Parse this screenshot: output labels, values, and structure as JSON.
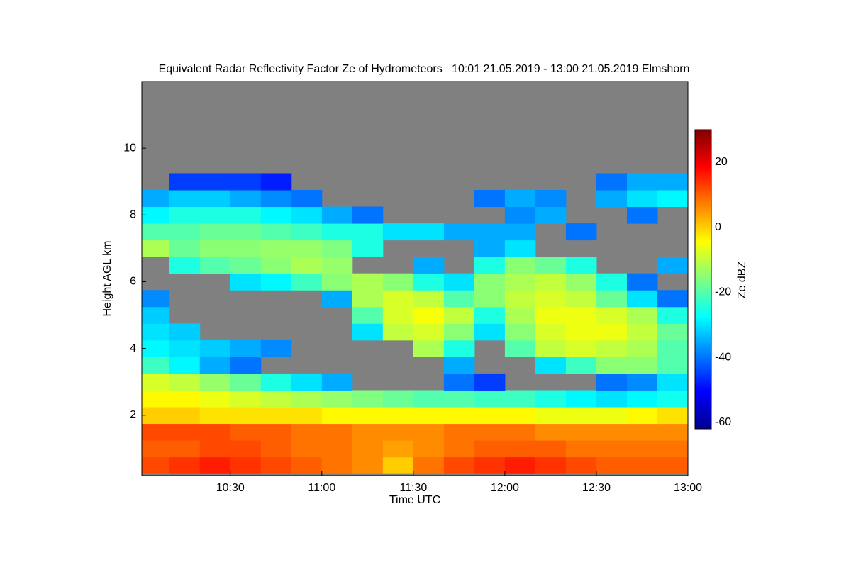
{
  "chart_data": {
    "type": "heatmap",
    "title": "Equivalent Radar Reflectivity Factor Ze of Hydrometeors   10:01 21.05.2019 - 13:00 21.05.2019 Elmshorn",
    "x_label": "Time UTC",
    "y_label": "Height AGL km",
    "colorbar_label": "Ze dBZ",
    "colormap": "jet",
    "background_color": "#808080",
    "xlim": [
      601,
      780
    ],
    "xticks": [
      {
        "value": 630,
        "label": "10:30"
      },
      {
        "value": 660,
        "label": "11:00"
      },
      {
        "value": 690,
        "label": "11:30"
      },
      {
        "value": 720,
        "label": "12:00"
      },
      {
        "value": 750,
        "label": "12:30"
      },
      {
        "value": 780,
        "label": "13:00"
      }
    ],
    "ylim": [
      0.19,
      12
    ],
    "yticks": [
      2,
      4,
      6,
      8,
      10
    ],
    "clim": [
      -62,
      30
    ],
    "cticks": [
      -60,
      -40,
      -20,
      0,
      20
    ],
    "x": [
      605,
      615,
      625,
      635,
      645,
      655,
      665,
      675,
      685,
      695,
      705,
      715,
      725,
      735,
      745,
      755,
      765,
      775
    ],
    "y": [
      0.5,
      1.0,
      1.5,
      2.0,
      2.5,
      3.0,
      3.5,
      4.0,
      4.5,
      5.0,
      5.5,
      6.0,
      6.5,
      7.0,
      7.5,
      8.0,
      8.5,
      9.0
    ],
    "z": [
      [
        12,
        14,
        16,
        14,
        12,
        10,
        8,
        6,
        0,
        8,
        12,
        14,
        16,
        14,
        12,
        10,
        10,
        10
      ],
      [
        10,
        10,
        12,
        12,
        10,
        8,
        8,
        6,
        4,
        6,
        8,
        10,
        10,
        10,
        8,
        8,
        8,
        8
      ],
      [
        12,
        12,
        12,
        10,
        10,
        8,
        8,
        6,
        6,
        6,
        8,
        8,
        8,
        6,
        6,
        6,
        6,
        6
      ],
      [
        0,
        0,
        -2,
        -2,
        -2,
        -2,
        -4,
        -4,
        -4,
        -4,
        -4,
        -4,
        -4,
        -6,
        -6,
        -6,
        -4,
        -2
      ],
      [
        -4,
        -4,
        -6,
        -8,
        -10,
        -12,
        -14,
        -16,
        -18,
        -20,
        -20,
        -22,
        -22,
        -25,
        -28,
        -30,
        -28,
        -26
      ],
      [
        -8,
        -10,
        -14,
        -18,
        -25,
        -30,
        -35,
        null,
        null,
        null,
        -40,
        -45,
        null,
        null,
        null,
        -40,
        -38,
        -30
      ],
      [
        -22,
        -28,
        -35,
        -40,
        null,
        null,
        null,
        null,
        null,
        null,
        -35,
        null,
        null,
        -30,
        -22,
        -15,
        -15,
        -20
      ],
      [
        -28,
        -30,
        -32,
        -35,
        -38,
        null,
        null,
        null,
        null,
        -12,
        -25,
        null,
        -20,
        -10,
        -8,
        -10,
        -12,
        -20
      ],
      [
        -30,
        -32,
        null,
        null,
        null,
        null,
        null,
        -30,
        -10,
        -8,
        -15,
        -30,
        -15,
        -8,
        -6,
        -6,
        -10,
        -18
      ],
      [
        -32,
        null,
        null,
        null,
        null,
        null,
        null,
        -20,
        -8,
        -5,
        -10,
        -25,
        -12,
        -6,
        -6,
        -8,
        -12,
        -25
      ],
      [
        -38,
        null,
        null,
        null,
        null,
        null,
        -35,
        -12,
        -8,
        -10,
        -20,
        -15,
        -10,
        -8,
        -10,
        -18,
        -30,
        -40
      ],
      [
        null,
        null,
        null,
        -30,
        -28,
        -22,
        -15,
        -12,
        -15,
        -25,
        -30,
        -15,
        -12,
        -10,
        -14,
        -25,
        -40,
        null
      ],
      [
        null,
        -25,
        -20,
        -18,
        -15,
        -12,
        -14,
        null,
        null,
        -35,
        null,
        -25,
        -15,
        -18,
        -25,
        null,
        null,
        -35
      ],
      [
        -12,
        -18,
        -15,
        -15,
        -14,
        -14,
        -16,
        -25,
        null,
        null,
        null,
        -35,
        -30,
        null,
        null,
        null,
        null,
        null
      ],
      [
        -20,
        -20,
        -18,
        -18,
        -20,
        -22,
        -25,
        -25,
        -30,
        -30,
        -35,
        -35,
        -35,
        null,
        -40,
        null,
        null,
        null
      ],
      [
        -28,
        -25,
        -25,
        -25,
        -28,
        -30,
        -35,
        -40,
        null,
        null,
        null,
        null,
        -38,
        -35,
        null,
        null,
        -40,
        null
      ],
      [
        -35,
        -32,
        -32,
        -35,
        -38,
        -40,
        null,
        null,
        null,
        null,
        null,
        -40,
        -35,
        -38,
        null,
        -35,
        -30,
        -28
      ],
      [
        null,
        -45,
        -45,
        -45,
        -48,
        null,
        null,
        null,
        null,
        null,
        null,
        null,
        null,
        null,
        null,
        -40,
        -35,
        -35
      ]
    ]
  }
}
